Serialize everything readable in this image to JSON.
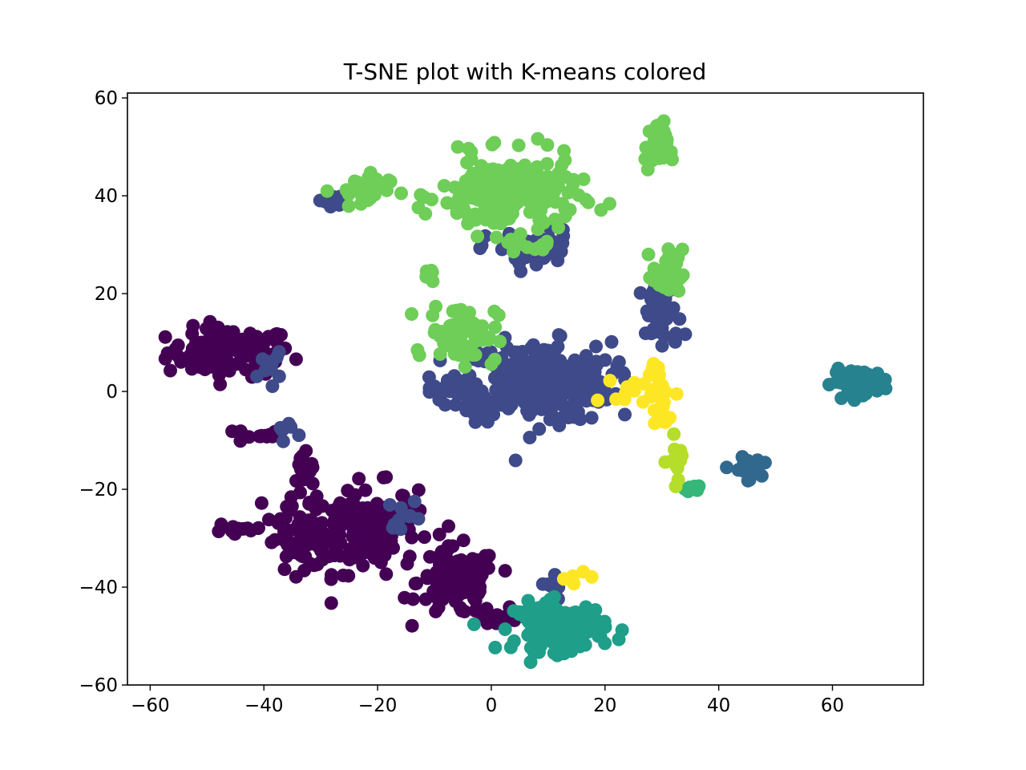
{
  "chart_data": {
    "type": "scatter",
    "title": "T-SNE plot with K-means colored",
    "xlabel": "",
    "ylabel": "",
    "xlim": [
      -64,
      76
    ],
    "ylim": [
      -60,
      61
    ],
    "x_ticks": [
      -60,
      -40,
      -20,
      0,
      20,
      40,
      60
    ],
    "x_tick_labels": [
      "−60",
      "−40",
      "−20",
      "0",
      "20",
      "40",
      "60"
    ],
    "y_ticks": [
      -60,
      -40,
      -20,
      0,
      20,
      40,
      60
    ],
    "y_tick_labels": [
      "−60",
      "−40",
      "−20",
      "0",
      "20",
      "40",
      "60"
    ],
    "grid": false,
    "legend": "none",
    "colors": [
      "#440154",
      "#3e4a89",
      "#31688e",
      "#26828e",
      "#1f9e89",
      "#35b779",
      "#6ece58",
      "#b5de2b",
      "#fde725"
    ],
    "clusters": [
      {
        "cluster": 0,
        "color": "#440154",
        "center": [
          -46,
          8
        ],
        "spread": [
          5.5,
          2.5
        ],
        "count": 110
      },
      {
        "cluster": 0,
        "color": "#440154",
        "center": [
          -41,
          -9
        ],
        "spread": [
          2.0,
          0.8
        ],
        "count": 14
      },
      {
        "cluster": 0,
        "color": "#440154",
        "center": [
          -23,
          -28
        ],
        "spread": [
          5.0,
          4.5
        ],
        "count": 140
      },
      {
        "cluster": 0,
        "color": "#440154",
        "center": [
          -33,
          -30
        ],
        "spread": [
          3.5,
          3.0
        ],
        "count": 55
      },
      {
        "cluster": 0,
        "color": "#440154",
        "center": [
          -33,
          -18
        ],
        "spread": [
          1.5,
          3.0
        ],
        "count": 20
      },
      {
        "cluster": 0,
        "color": "#440154",
        "center": [
          -44,
          -28
        ],
        "spread": [
          2.5,
          1.0
        ],
        "count": 14
      },
      {
        "cluster": 0,
        "color": "#440154",
        "center": [
          -6,
          -39
        ],
        "spread": [
          3.5,
          3.5
        ],
        "count": 110
      },
      {
        "cluster": 0,
        "color": "#440154",
        "center": [
          1,
          -46
        ],
        "spread": [
          2.0,
          1.0
        ],
        "count": 14
      },
      {
        "cluster": 1,
        "color": "#3e4a89",
        "center": [
          8,
          2
        ],
        "spread": [
          6.5,
          4.0
        ],
        "count": 320
      },
      {
        "cluster": 1,
        "color": "#3e4a89",
        "center": [
          -6,
          0
        ],
        "spread": [
          2.5,
          1.8
        ],
        "count": 30
      },
      {
        "cluster": 1,
        "color": "#3e4a89",
        "center": [
          7,
          29
        ],
        "spread": [
          4.0,
          2.0
        ],
        "count": 45
      },
      {
        "cluster": 1,
        "color": "#3e4a89",
        "center": [
          30,
          15
        ],
        "spread": [
          1.8,
          3.5
        ],
        "count": 45
      },
      {
        "cluster": 1,
        "color": "#3e4a89",
        "center": [
          -39,
          5
        ],
        "spread": [
          1.0,
          1.5
        ],
        "count": 10
      },
      {
        "cluster": 1,
        "color": "#3e4a89",
        "center": [
          -36,
          -8
        ],
        "spread": [
          1.0,
          1.0
        ],
        "count": 6
      },
      {
        "cluster": 1,
        "color": "#3e4a89",
        "center": [
          -28,
          39
        ],
        "spread": [
          1.2,
          0.8
        ],
        "count": 10
      },
      {
        "cluster": 1,
        "color": "#3e4a89",
        "center": [
          -15,
          -25
        ],
        "spread": [
          1.5,
          1.5
        ],
        "count": 10
      },
      {
        "cluster": 1,
        "color": "#3e4a89",
        "center": [
          11,
          -40
        ],
        "spread": [
          1.0,
          1.5
        ],
        "count": 6
      },
      {
        "cluster": 2,
        "color": "#31688e",
        "center": [
          45,
          -16
        ],
        "spread": [
          1.2,
          1.2
        ],
        "count": 28
      },
      {
        "cluster": 3,
        "color": "#26828e",
        "center": [
          65,
          2
        ],
        "spread": [
          2.5,
          1.2
        ],
        "count": 70
      },
      {
        "cluster": 4,
        "color": "#1f9e89",
        "center": [
          12,
          -48
        ],
        "spread": [
          4.0,
          2.5
        ],
        "count": 130
      },
      {
        "cluster": 5,
        "color": "#35b779",
        "center": [
          35,
          -20
        ],
        "spread": [
          1.0,
          0.6
        ],
        "count": 8
      },
      {
        "cluster": 6,
        "color": "#6ece58",
        "center": [
          3,
          40
        ],
        "spread": [
          6.0,
          4.0
        ],
        "count": 210
      },
      {
        "cluster": 6,
        "color": "#6ece58",
        "center": [
          -5,
          12
        ],
        "spread": [
          3.0,
          3.0
        ],
        "count": 80
      },
      {
        "cluster": 6,
        "color": "#6ece58",
        "center": [
          -23,
          41
        ],
        "spread": [
          2.5,
          1.8
        ],
        "count": 35
      },
      {
        "cluster": 6,
        "color": "#6ece58",
        "center": [
          29,
          50
        ],
        "spread": [
          1.0,
          2.5
        ],
        "count": 35
      },
      {
        "cluster": 6,
        "color": "#6ece58",
        "center": [
          31,
          24
        ],
        "spread": [
          1.3,
          2.5
        ],
        "count": 35
      },
      {
        "cluster": 6,
        "color": "#6ece58",
        "center": [
          -11,
          23
        ],
        "spread": [
          0.8,
          1.0
        ],
        "count": 6
      },
      {
        "cluster": 6,
        "color": "#6ece58",
        "center": [
          8,
          30
        ],
        "spread": [
          2.5,
          1.0
        ],
        "count": 10
      },
      {
        "cluster": 7,
        "color": "#b5de2b",
        "center": [
          33,
          -14
        ],
        "spread": [
          1.0,
          2.5
        ],
        "count": 14
      },
      {
        "cluster": 8,
        "color": "#fde725",
        "center": [
          27,
          0
        ],
        "spread": [
          2.5,
          1.2
        ],
        "count": 25
      },
      {
        "cluster": 8,
        "color": "#fde725",
        "center": [
          30,
          -5
        ],
        "spread": [
          0.8,
          1.5
        ],
        "count": 10
      },
      {
        "cluster": 8,
        "color": "#fde725",
        "center": [
          29,
          4
        ],
        "spread": [
          0.8,
          1.5
        ],
        "count": 8
      },
      {
        "cluster": 8,
        "color": "#fde725",
        "center": [
          15,
          -38
        ],
        "spread": [
          1.5,
          1.0
        ],
        "count": 5
      }
    ]
  }
}
